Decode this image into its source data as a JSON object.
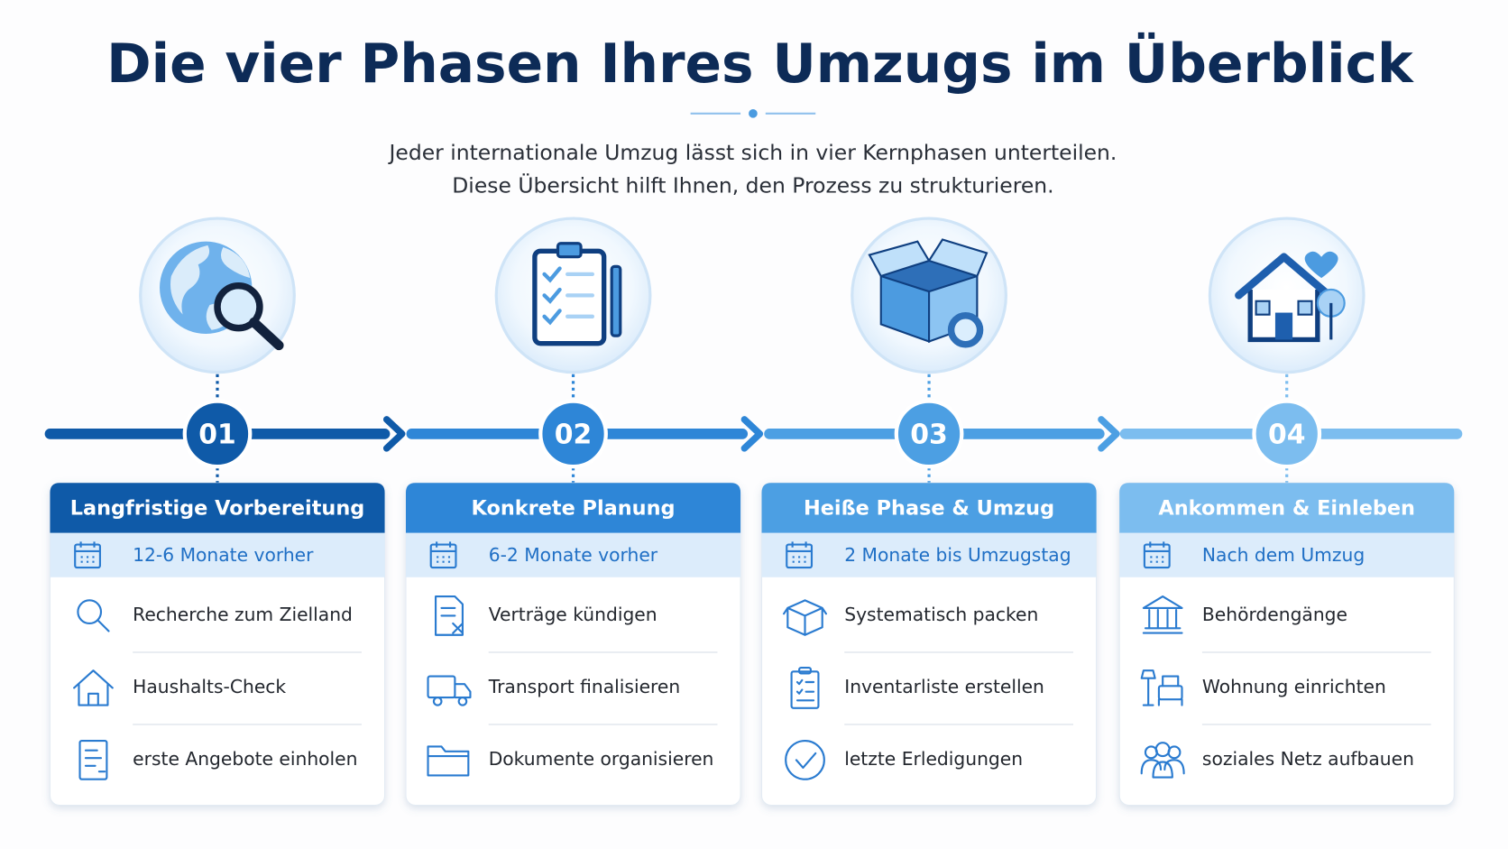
{
  "title": "Die vier Phasen Ihres Umzugs im Überblick",
  "intro": [
    "Jeder internationale Umzug lässt sich in vier Kernphasen unterteilen.",
    "Diese Übersicht hilft Ihnen, den Prozess zu strukturieren."
  ],
  "phases": [
    {
      "number": "01",
      "title": "Langfristige Vorbereitung",
      "timing": "12-6 Monate vorher",
      "tasks": [
        "Recherche zum Zielland",
        "Haushalts-Check",
        "erste Angebote einholen"
      ]
    },
    {
      "number": "02",
      "title": "Konkrete Planung",
      "timing": "6-2 Monate vorher",
      "tasks": [
        "Verträge kündigen",
        "Transport finalisieren",
        "Dokumente organisieren"
      ]
    },
    {
      "number": "03",
      "title": "Heiße Phase & Umzug",
      "timing": "2 Monate bis Umzugstag",
      "tasks": [
        "Systematisch packen",
        "Inventarliste erstellen",
        "letzte Erledigungen"
      ]
    },
    {
      "number": "04",
      "title": "Ankommen & Einleben",
      "timing": "Nach dem Umzug",
      "tasks": [
        "Behördengänge",
        "Wohnung einrichten",
        "soziales Netz aufbauen"
      ]
    }
  ]
}
